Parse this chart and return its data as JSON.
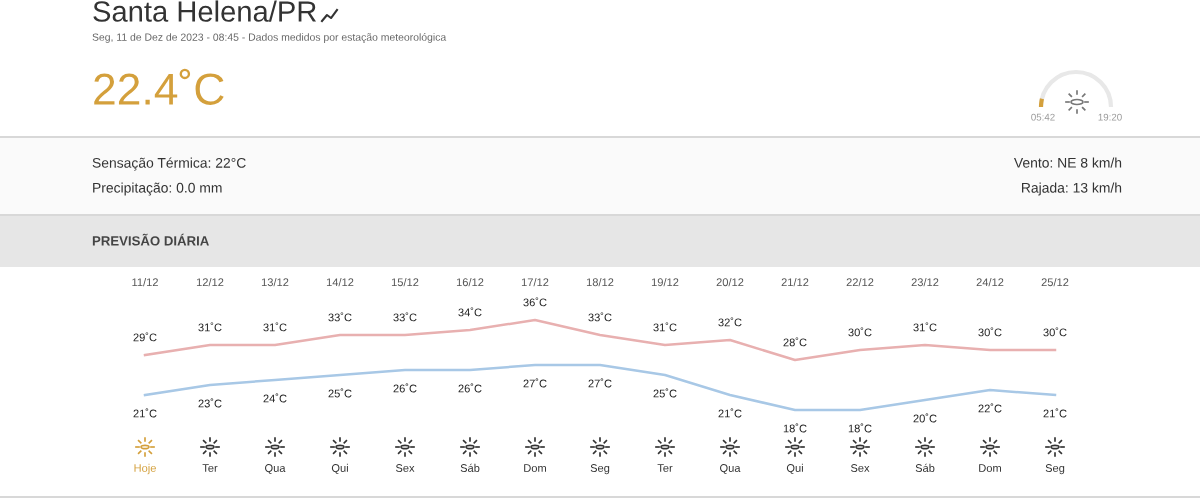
{
  "chart_data": {
    "type": "line",
    "title": "Santa Helena/PR",
    "subtitle": "Seg, 11 de Dez de 2023 - 08:45 - Dados medidos por estação meteorológica",
    "categories": [
      "11/12",
      "12/12",
      "13/12",
      "14/12",
      "15/12",
      "16/12",
      "17/12",
      "18/12",
      "19/12",
      "20/12",
      "21/12",
      "22/12",
      "23/12",
      "24/12",
      "25/12"
    ],
    "series": [
      {
        "color": "#e8b0b0",
        "values": [
          29,
          31,
          31,
          33,
          33,
          34,
          36,
          33,
          31,
          32,
          28,
          30,
          31,
          30,
          30
        ],
        "value_labels": [
          "29˚C",
          "31˚C",
          "31˚C",
          "33˚C",
          "33˚C",
          "34˚C",
          "36˚C",
          "33˚C",
          "31˚C",
          "32˚C",
          "28˚C",
          "30˚C",
          "31˚C",
          "30˚C",
          "30˚C"
        ]
      },
      {
        "color": "#a8c8e6",
        "values": [
          21,
          23,
          24,
          25,
          26,
          26,
          27,
          27,
          25,
          21,
          18,
          18,
          20,
          22,
          21
        ],
        "value_labels": [
          "21˚C",
          "23˚C",
          "24˚C",
          "25˚C",
          "26˚C",
          "26˚C",
          "27˚C",
          "27˚C",
          "25˚C",
          "21˚C",
          "18˚C",
          "18˚C",
          "20˚C",
          "22˚C",
          "21˚C"
        ]
      }
    ],
    "annotations": [
      "22.4˚C",
      "05:42",
      "19:20",
      "Sensação Térmica: 22°C",
      "Precipitação: 0.0 mm",
      "Vento: NE 8 km/h",
      "Rajada: 13 km/h",
      "PREVISÃO DIÁRIA",
      "Hoje",
      "Ter",
      "Qua",
      "Qui",
      "Sex",
      "Sáb",
      "Dom",
      "Seg",
      "Ter",
      "Qua",
      "Qui",
      "Sex",
      "Sáb",
      "Dom",
      "Seg"
    ],
    "grid": false,
    "legend": false,
    "marker": "none",
    "line_style": "solid"
  }
}
